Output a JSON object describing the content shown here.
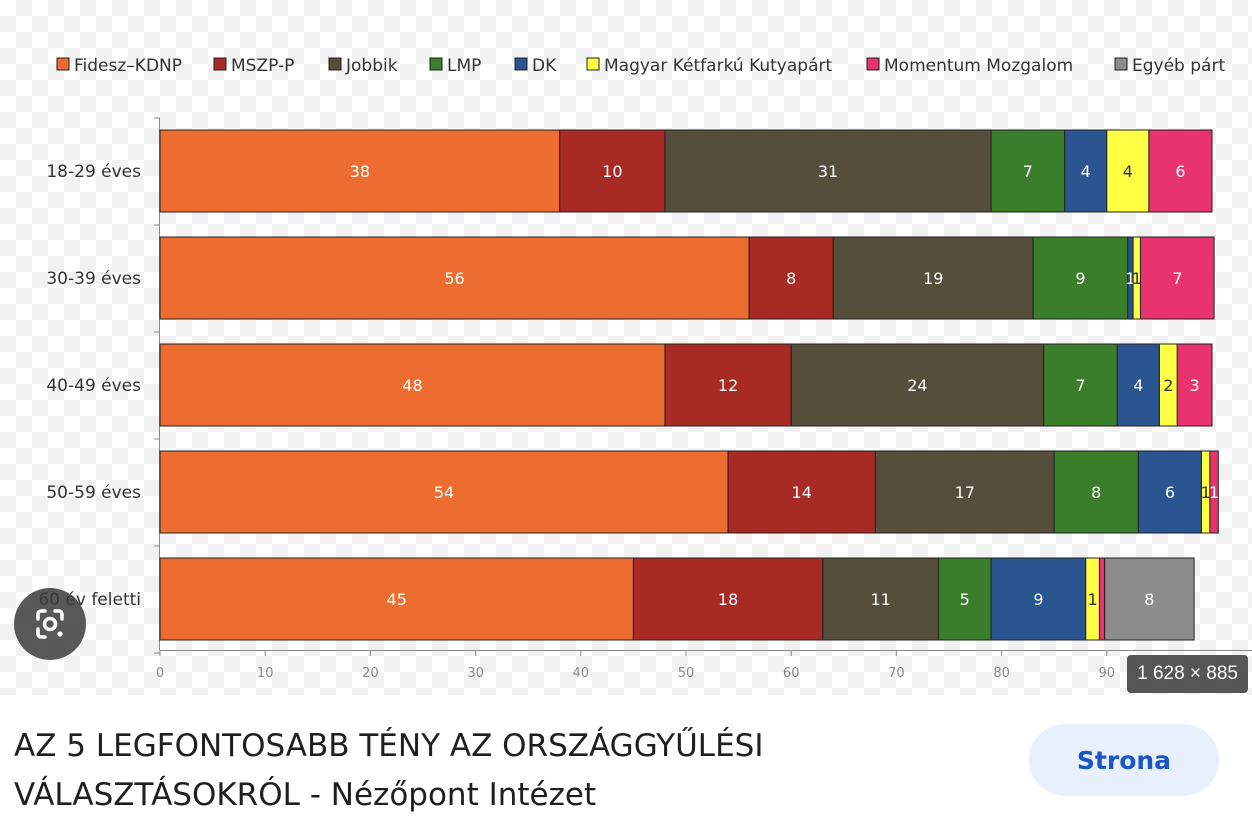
{
  "image_badge": {
    "dimensions": "1 628 × 885"
  },
  "result": {
    "title_line_1": "AZ 5 LEGFONTOSABB TÉNY AZ ORSZÁGGYŰLÉSI",
    "title_line_2": "VÁLASZTÁSOKRÓL - Nézőpont Intézet",
    "button_label": "Strona"
  },
  "icons": {
    "lens": "google-lens-icon"
  },
  "chart_data": {
    "type": "bar",
    "orientation": "horizontal",
    "stacked": true,
    "categories": [
      "18-29 éves",
      "30-39 éves",
      "40-49 éves",
      "50-59 éves",
      "60 év feletti"
    ],
    "series": [
      {
        "name": "Fidesz–KDNP",
        "color": "#ed6d31",
        "values": [
          38,
          56,
          48,
          54,
          45
        ],
        "labels": [
          "38",
          "56",
          "48",
          "54",
          "45"
        ]
      },
      {
        "name": "MSZP-P",
        "color": "#a82a25",
        "values": [
          10,
          8,
          12,
          14,
          18
        ],
        "labels": [
          "10",
          "8",
          "12",
          "14",
          "18"
        ]
      },
      {
        "name": "Jobbik",
        "color": "#544e3a",
        "values": [
          31,
          19,
          24,
          17,
          11
        ],
        "labels": [
          "31",
          "19",
          "24",
          "17",
          "11"
        ]
      },
      {
        "name": "LMP",
        "color": "#3a7d2b",
        "values": [
          7,
          9,
          7,
          8,
          5
        ],
        "labels": [
          "7",
          "9",
          "7",
          "8",
          "5"
        ]
      },
      {
        "name": "DK",
        "color": "#2a5590",
        "values": [
          4,
          0.5,
          4,
          6,
          9
        ],
        "labels": [
          "4",
          "1",
          "4",
          "6",
          "9"
        ]
      },
      {
        "name": "Magyar Kétfarkú Kutyapárt",
        "color": "#ffff44",
        "values": [
          4,
          0.7,
          1.7,
          0.8,
          1.3
        ],
        "labels": [
          "4",
          "1",
          "2",
          "1",
          "1"
        ]
      },
      {
        "name": "Momentum Mozgalom",
        "color": "#e8336f",
        "values": [
          6,
          7,
          3.3,
          0.8,
          0.5
        ],
        "labels": [
          "6",
          "7",
          "3",
          "1",
          ""
        ]
      },
      {
        "name": "Egyéb párt",
        "color": "#8c8c8c",
        "values": [
          0,
          0,
          0,
          0,
          8.5
        ],
        "labels": [
          "",
          "",
          "",
          "",
          "8"
        ]
      }
    ],
    "xlim": [
      0,
      100
    ],
    "xticks": [
      "0",
      "10",
      "20",
      "30",
      "40",
      "50",
      "60",
      "70",
      "80",
      "90"
    ],
    "legend_position": "top",
    "grid": false,
    "title": "",
    "xlabel": "",
    "ylabel": ""
  }
}
